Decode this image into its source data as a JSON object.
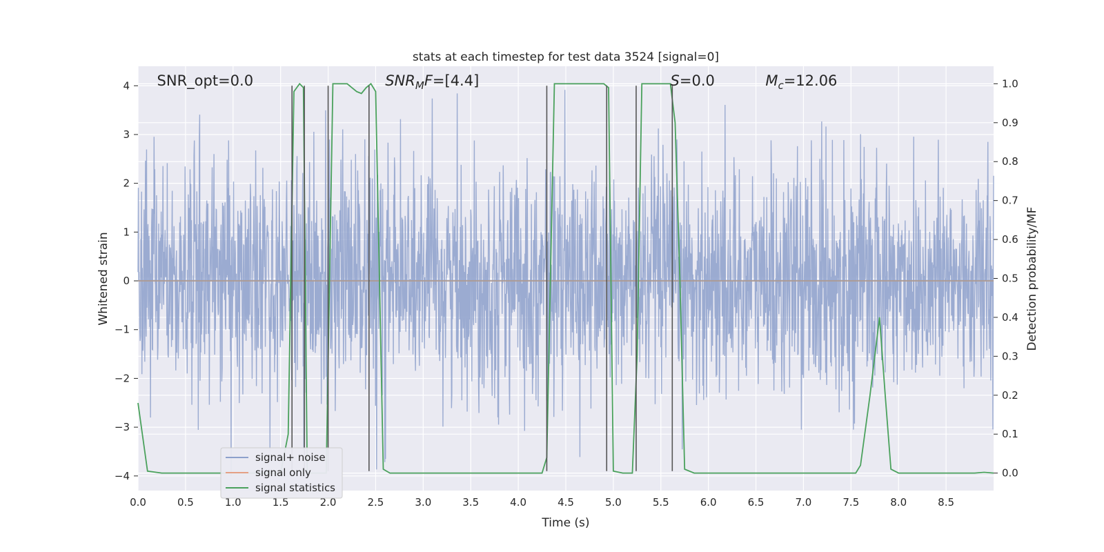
{
  "chart_data": {
    "type": "line",
    "title": "stats at each timestep for test data 3524 [signal=0]",
    "xlabel": "Time (s)",
    "ylabel": "Whitened strain",
    "y2label": "Detection probability/MF",
    "xlim": [
      0.0,
      9.0
    ],
    "ylim": [
      -4.3,
      4.4
    ],
    "y2lim": [
      -0.045,
      1.045
    ],
    "x_ticks": [
      0.0,
      0.5,
      1.0,
      1.5,
      2.0,
      2.5,
      3.0,
      3.5,
      4.0,
      4.5,
      5.0,
      5.5,
      6.0,
      6.5,
      7.0,
      7.5,
      8.0,
      8.5
    ],
    "x_tick_labels": [
      "0.0",
      "0.5",
      "1.0",
      "1.5",
      "2.0",
      "2.5",
      "3.0",
      "3.5",
      "4.0",
      "4.5",
      "5.0",
      "5.5",
      "6.0",
      "6.5",
      "7.0",
      "7.5",
      "8.0",
      "8.5"
    ],
    "y_ticks": [
      4,
      3,
      2,
      1,
      0,
      -1,
      -2,
      -3,
      -4
    ],
    "y_tick_labels": [
      "4",
      "3",
      "2",
      "1",
      "0",
      "−1",
      "−2",
      "−3",
      "−4"
    ],
    "y2_ticks": [
      1.0,
      0.9,
      0.8,
      0.7,
      0.6,
      0.5,
      0.4,
      0.3,
      0.2,
      0.1,
      0.0
    ],
    "y2_tick_labels": [
      "1.0",
      "0.9",
      "0.8",
      "0.7",
      "0.6",
      "0.5",
      "0.4",
      "0.3",
      "0.2",
      "0.1",
      "0.0"
    ],
    "grid": true,
    "legend_placement": "lower-left",
    "series": [
      {
        "name": "signal+ noise",
        "color": "#8da0cb",
        "kind": "noise",
        "amplitude_scale": 1.0
      },
      {
        "name": "signal only",
        "color": "#e5a085",
        "kind": "line",
        "x": [
          0.0,
          9.0
        ],
        "y": [
          0.0,
          0.0
        ]
      },
      {
        "name": "signal statistics",
        "color": "#4aa15c",
        "kind": "line",
        "axis": "right",
        "x": [
          0.0,
          0.1,
          0.25,
          1.5,
          1.58,
          1.64,
          1.7,
          1.74,
          1.78,
          1.85,
          1.92,
          1.98,
          2.05,
          2.2,
          2.25,
          2.3,
          2.35,
          2.4,
          2.45,
          2.5,
          2.58,
          2.65,
          4.25,
          4.3,
          4.38,
          4.9,
          4.95,
          5.0,
          5.1,
          5.2,
          5.25,
          5.3,
          5.6,
          5.65,
          5.7,
          5.75,
          5.85,
          7.55,
          7.6,
          7.7,
          7.8,
          7.86,
          7.92,
          8.0,
          8.8,
          8.9,
          9.0
        ],
        "y": [
          0.18,
          0.005,
          0.0,
          0.0,
          0.1,
          0.98,
          1.0,
          0.99,
          0.0,
          0.0,
          0.0,
          0.0,
          1.0,
          1.0,
          0.99,
          0.98,
          0.975,
          0.99,
          1.0,
          0.98,
          0.01,
          0.0,
          0.0,
          0.04,
          1.0,
          1.0,
          0.99,
          0.005,
          0.0,
          0.0,
          0.3,
          1.0,
          1.0,
          0.9,
          0.5,
          0.01,
          0.0,
          0.0,
          0.02,
          0.2,
          0.4,
          0.2,
          0.01,
          0.0,
          0.0,
          0.002,
          0.0
        ]
      }
    ],
    "vertical_lines": [
      1.62,
      1.75,
      2.0,
      2.43,
      4.3,
      4.93,
      5.24,
      5.62
    ],
    "annotations": [
      {
        "text": "SNR_opt=0.0",
        "x": 0.2,
        "y": 4.1,
        "italic": false
      },
      {
        "text": "=[4.4]",
        "prefix_italic": "SNR",
        "sub": "M",
        "prefix_italic2": "F",
        "x": 2.6,
        "y": 4.1,
        "italic": true
      },
      {
        "text": "=0.0",
        "prefix_italic": "S",
        "x": 5.6,
        "y": 4.1,
        "italic": true
      },
      {
        "text": "=12.06",
        "prefix_italic": "M",
        "sub": "c",
        "x": 6.6,
        "y": 4.1,
        "italic": true
      }
    ],
    "colors": {
      "plot_bg": "#eaeaf2",
      "grid": "#ffffff",
      "vline": "#555555",
      "text": "#262626"
    }
  }
}
